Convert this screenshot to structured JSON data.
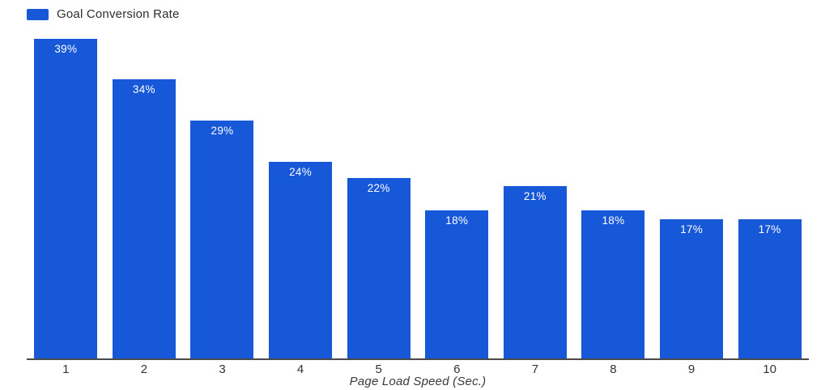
{
  "chart_data": {
    "type": "bar",
    "legend": "Goal Conversion Rate",
    "legend_position": "top-left",
    "categories": [
      "1",
      "2",
      "3",
      "4",
      "5",
      "6",
      "7",
      "8",
      "9",
      "10"
    ],
    "values": [
      39,
      34,
      29,
      24,
      22,
      18,
      21,
      18,
      17,
      17
    ],
    "value_labels": [
      "39%",
      "34%",
      "29%",
      "24%",
      "22%",
      "18%",
      "21%",
      "18%",
      "17%",
      "17%"
    ],
    "title": "",
    "xlabel": "Page Load Speed (Sec.)",
    "ylabel": "",
    "ylim": [
      0,
      39
    ],
    "grid": false,
    "bar_color": "#1658d8",
    "value_label_color": "#ffffff",
    "axis_line_color": "#4a4a4a"
  }
}
